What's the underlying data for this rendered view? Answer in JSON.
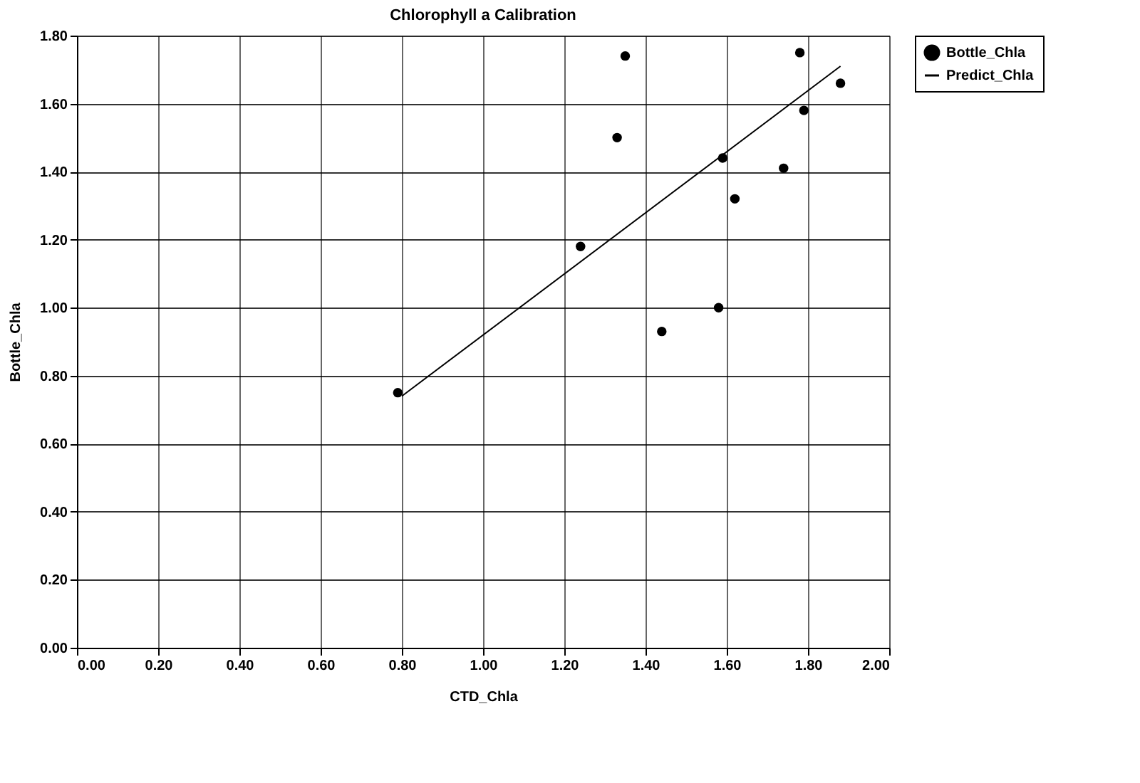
{
  "chart_data": {
    "type": "scatter",
    "title": "Chlorophyll a Calibration",
    "xlabel": "CTD_Chla",
    "ylabel": "Bottle_Chla",
    "series": [
      {
        "name": "Bottle_Chla",
        "type": "scatter",
        "color": "#000000",
        "marker": "circle",
        "x": [
          1.35,
          1.78,
          1.88,
          1.79,
          1.33,
          1.59,
          1.74,
          1.62,
          1.24,
          1.58,
          1.44,
          0.79
        ],
        "values": [
          1.74,
          1.75,
          1.66,
          1.58,
          1.5,
          1.44,
          1.41,
          1.32,
          1.18,
          1.0,
          0.93,
          0.75
        ]
      },
      {
        "name": "Predict_Chla",
        "type": "line",
        "color": "#000000",
        "line_style": "solid",
        "marker": "none",
        "x": [
          0.8,
          1.88
        ],
        "values": [
          0.74,
          1.71
        ]
      }
    ],
    "xlim": [
      0,
      2
    ],
    "ylim": [
      0,
      1.8
    ],
    "xticks": [
      {
        "value": 0,
        "label": "0.00"
      },
      {
        "value": 0.2,
        "label": "0.20"
      },
      {
        "value": 0.4,
        "label": "0.40"
      },
      {
        "value": 0.6,
        "label": "0.60"
      },
      {
        "value": 0.8,
        "label": "0.80"
      },
      {
        "value": 1.0,
        "label": "1.00"
      },
      {
        "value": 1.2,
        "label": "1.20"
      },
      {
        "value": 1.4,
        "label": "1.40"
      },
      {
        "value": 1.6,
        "label": "1.60"
      },
      {
        "value": 1.8,
        "label": "1.80"
      },
      {
        "value": 2.0,
        "label": "2.00"
      }
    ],
    "yticks": [
      {
        "value": 0,
        "label": "0.00"
      },
      {
        "value": 0.2,
        "label": "0.20"
      },
      {
        "value": 0.4,
        "label": "0.40"
      },
      {
        "value": 0.6,
        "label": "0.60"
      },
      {
        "value": 0.8,
        "label": "0.80"
      },
      {
        "value": 1.0,
        "label": "1.00"
      },
      {
        "value": 1.2,
        "label": "1.20"
      },
      {
        "value": 1.4,
        "label": "1.40"
      },
      {
        "value": 1.6,
        "label": "1.60"
      },
      {
        "value": 1.8,
        "label": "1.80"
      }
    ],
    "grid": true,
    "legend": "right"
  }
}
